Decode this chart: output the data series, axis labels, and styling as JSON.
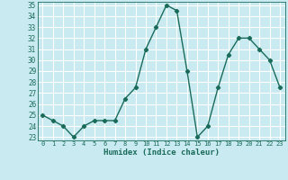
{
  "x": [
    0,
    1,
    2,
    3,
    4,
    5,
    6,
    7,
    8,
    9,
    10,
    11,
    12,
    13,
    14,
    15,
    16,
    17,
    18,
    19,
    20,
    21,
    22,
    23
  ],
  "y": [
    25.0,
    24.5,
    24.0,
    23.0,
    24.0,
    24.5,
    24.5,
    24.5,
    26.5,
    27.5,
    31.0,
    33.0,
    35.0,
    34.5,
    29.0,
    23.0,
    24.0,
    27.5,
    30.5,
    32.0,
    32.0,
    31.0,
    30.0,
    27.5
  ],
  "title": "",
  "xlabel": "Humidex (Indice chaleur)",
  "ylabel": "",
  "ylim": [
    23,
    35
  ],
  "xlim": [
    -0.5,
    23.5
  ],
  "yticks": [
    23,
    24,
    25,
    26,
    27,
    28,
    29,
    30,
    31,
    32,
    33,
    34,
    35
  ],
  "xticks": [
    0,
    1,
    2,
    3,
    4,
    5,
    6,
    7,
    8,
    9,
    10,
    11,
    12,
    13,
    14,
    15,
    16,
    17,
    18,
    19,
    20,
    21,
    22,
    23
  ],
  "line_color": "#1a6b5a",
  "marker": "D",
  "marker_size": 2.2,
  "bg_color": "#c8eaf0",
  "grid_color": "#ffffff",
  "line_width": 1.0
}
